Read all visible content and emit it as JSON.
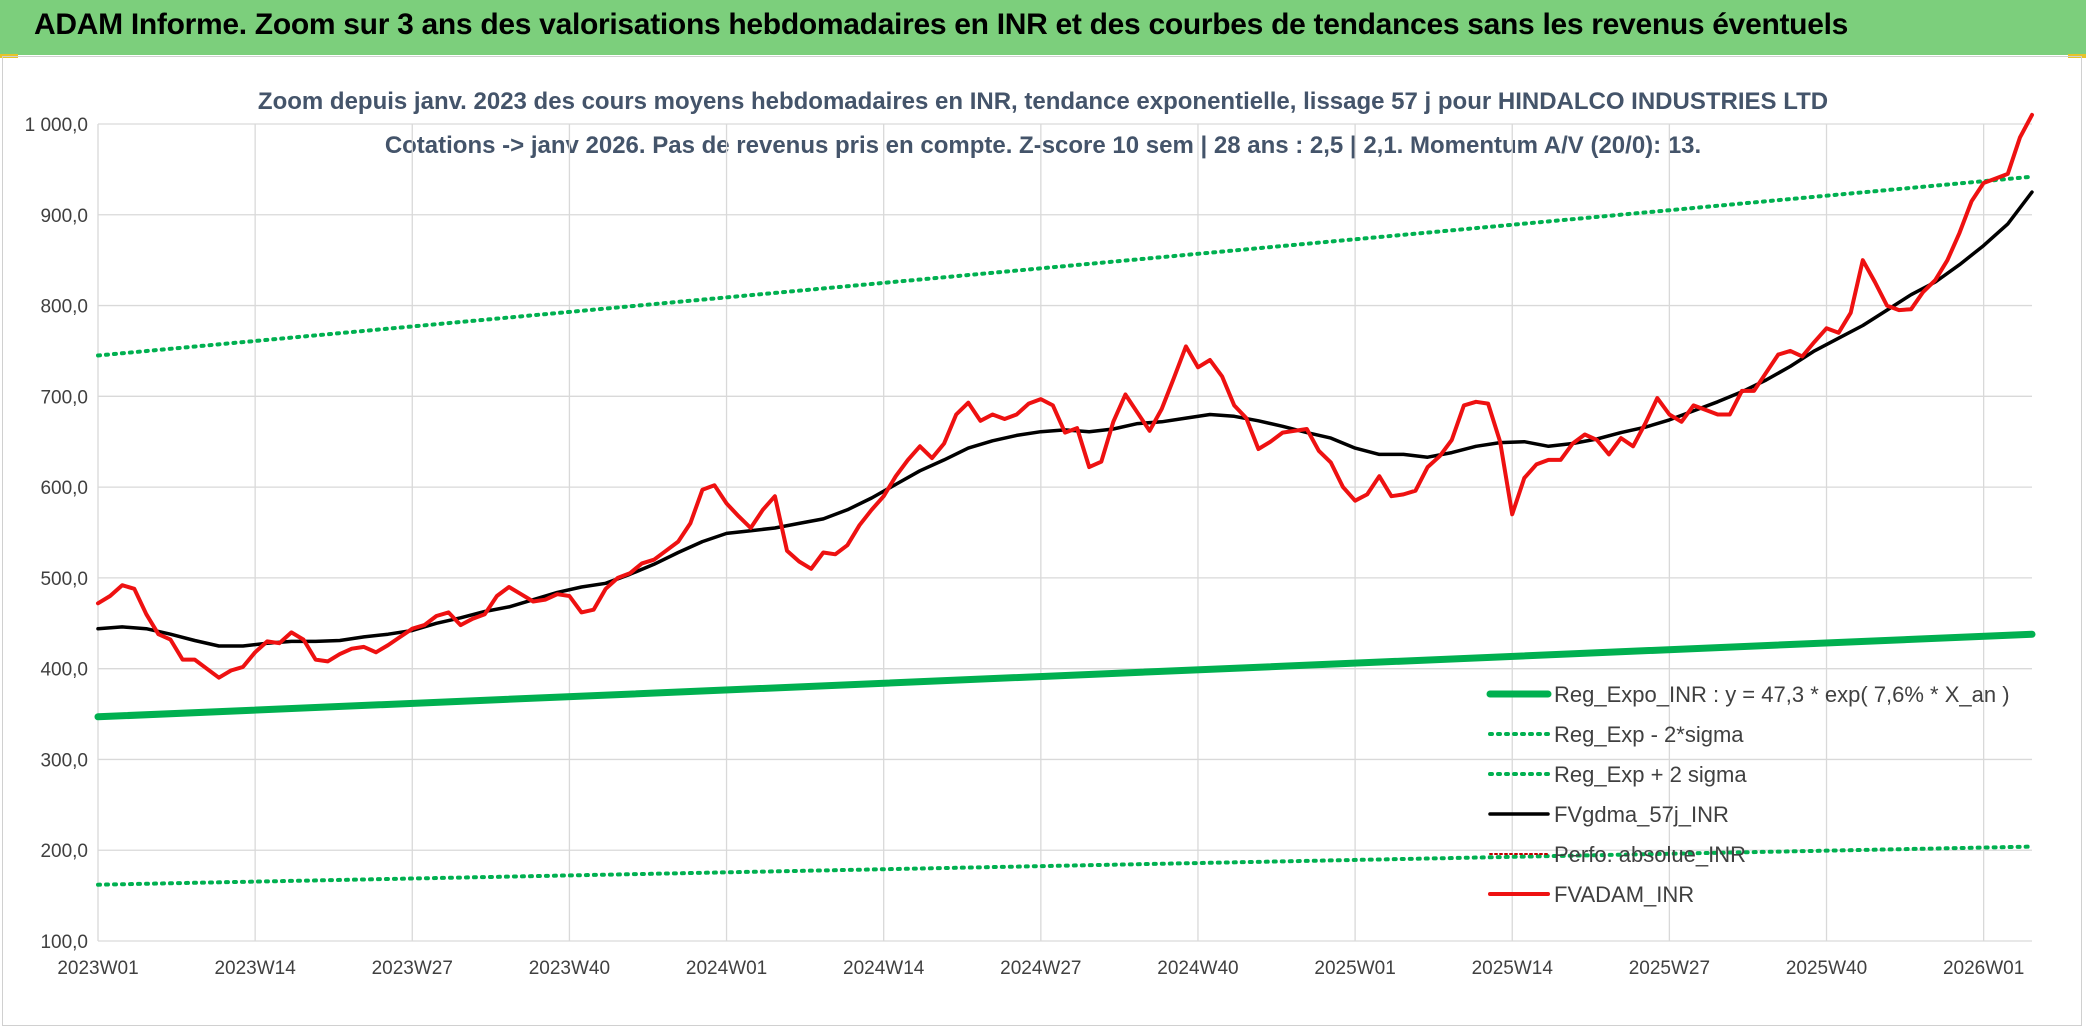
{
  "banner": {
    "title": "ADAM Informe. Zoom sur 3 ans des valorisations hebdomadaires en INR et des courbes de tendances sans les revenus éventuels"
  },
  "colors": {
    "banner_bg": "#7ccf7c",
    "reg_expo": "#00b050",
    "sigma_lines": "#00b050",
    "fvgdma": "#000000",
    "fvadam": "#ee1111",
    "perfo": "#c00000",
    "grid": "#d9d9d9"
  },
  "chart_data": {
    "type": "line",
    "title_lines": [
      "Zoom depuis janv. 2023 des cours moyens hebdomadaires en INR, tendance exponentielle, lissage 57 j pour HINDALCO INDUSTRIES LTD",
      "Cotations -> janv 2026. Pas de revenus pris en compte. Z-score 10 sem | 28 ans : 2,5 | 2,1. Momentum A/V (20/0): 13."
    ],
    "ylim": [
      100,
      1000
    ],
    "yticks": [
      "100,0",
      "200,0",
      "300,0",
      "400,0",
      "500,0",
      "600,0",
      "700,0",
      "800,0",
      "900,0",
      "1 000,0"
    ],
    "ytick_values": [
      100,
      200,
      300,
      400,
      500,
      600,
      700,
      800,
      900,
      1000
    ],
    "xticks": [
      "2023W01",
      "2023W14",
      "2023W27",
      "2023W40",
      "2024W01",
      "2024W14",
      "2024W27",
      "2024W40",
      "2025W01",
      "2025W14",
      "2025W27",
      "2025W40",
      "2026W01"
    ],
    "xtick_weeks": [
      0,
      13,
      26,
      39,
      52,
      65,
      78,
      91,
      104,
      117,
      130,
      143,
      156
    ],
    "xlim_weeks": [
      0,
      160
    ],
    "grid": true,
    "legend_position": "bottom-right",
    "series": [
      {
        "name": "Reg_Expo_INR : y = 47,3 * exp( 7,6% *  X_an )",
        "style": "thick",
        "x": [
          0,
          160
        ],
        "values": [
          347,
          438
        ]
      },
      {
        "name": "Reg_Exp - 2*sigma",
        "style": "dotted",
        "x": [
          0,
          160
        ],
        "values": [
          162,
          204
        ]
      },
      {
        "name": "Reg_Exp + 2 sigma",
        "style": "dotted",
        "x": [
          0,
          160
        ],
        "values": [
          745,
          942
        ]
      },
      {
        "name": "FVgdma_57j_INR",
        "style": "solid",
        "x": [
          0,
          2,
          4,
          6,
          8,
          10,
          12,
          14,
          16,
          18,
          20,
          22,
          24,
          26,
          28,
          30,
          32,
          34,
          36,
          38,
          40,
          42,
          44,
          46,
          48,
          50,
          52,
          54,
          56,
          58,
          60,
          62,
          64,
          66,
          68,
          70,
          72,
          74,
          76,
          78,
          80,
          82,
          84,
          86,
          88,
          90,
          92,
          94,
          96,
          98,
          100,
          102,
          104,
          106,
          108,
          110,
          112,
          114,
          116,
          118,
          120,
          122,
          124,
          126,
          128,
          130,
          132,
          134,
          136,
          138,
          140,
          142,
          144,
          146,
          148,
          150,
          152,
          154,
          156,
          158,
          160
        ],
        "values": [
          444,
          446,
          444,
          438,
          431,
          425,
          425,
          428,
          430,
          430,
          431,
          435,
          438,
          442,
          450,
          456,
          463,
          468,
          476,
          484,
          490,
          494,
          504,
          515,
          528,
          540,
          549,
          552,
          555,
          560,
          565,
          575,
          588,
          603,
          618,
          630,
          643,
          651,
          657,
          661,
          663,
          661,
          664,
          670,
          672,
          676,
          680,
          678,
          673,
          667,
          660,
          654,
          643,
          636,
          636,
          633,
          638,
          645,
          649,
          650,
          645,
          648,
          653,
          660,
          666,
          674,
          684,
          694,
          705,
          718,
          733,
          750,
          764,
          778,
          795,
          812,
          826,
          845,
          866,
          890,
          925
        ]
      },
      {
        "name": "Perfo. absolue_INR",
        "style": "solid-thin",
        "x": [],
        "values": []
      },
      {
        "name": "FVADAM_INR",
        "style": "solid",
        "x": [
          0,
          1,
          2,
          3,
          4,
          5,
          6,
          7,
          8,
          9,
          10,
          11,
          12,
          13,
          14,
          15,
          16,
          17,
          18,
          19,
          20,
          21,
          22,
          23,
          24,
          25,
          26,
          27,
          28,
          29,
          30,
          31,
          32,
          33,
          34,
          35,
          36,
          37,
          38,
          39,
          40,
          41,
          42,
          43,
          44,
          45,
          46,
          47,
          48,
          49,
          50,
          51,
          52,
          53,
          54,
          55,
          56,
          57,
          58,
          59,
          60,
          61,
          62,
          63,
          64,
          65,
          66,
          67,
          68,
          69,
          70,
          71,
          72,
          73,
          74,
          75,
          76,
          77,
          78,
          79,
          80,
          81,
          82,
          83,
          84,
          85,
          86,
          87,
          88,
          89,
          90,
          91,
          92,
          93,
          94,
          95,
          96,
          97,
          98,
          99,
          100,
          101,
          102,
          103,
          104,
          105,
          106,
          107,
          108,
          109,
          110,
          111,
          112,
          113,
          114,
          115,
          116,
          117,
          118,
          119,
          120,
          121,
          122,
          123,
          124,
          125,
          126,
          127,
          128,
          129,
          130,
          131,
          132,
          133,
          134,
          135,
          136,
          137,
          138,
          139,
          140,
          141,
          142,
          143,
          144,
          145,
          146,
          147,
          148,
          149,
          150,
          151,
          152,
          153,
          154,
          155,
          156,
          157,
          158,
          159,
          160
        ],
        "values": [
          472,
          480,
          492,
          488,
          460,
          438,
          432,
          410,
          410,
          400,
          390,
          398,
          402,
          418,
          430,
          428,
          440,
          432,
          410,
          408,
          416,
          422,
          424,
          418,
          426,
          435,
          444,
          448,
          458,
          462,
          448,
          455,
          460,
          480,
          490,
          482,
          474,
          476,
          482,
          480,
          462,
          465,
          488,
          500,
          505,
          516,
          520,
          530,
          540,
          560,
          597,
          602,
          582,
          568,
          555,
          575,
          590,
          530,
          518,
          510,
          528,
          526,
          536,
          558,
          575,
          590,
          612,
          630,
          645,
          632,
          648,
          680,
          693,
          673,
          680,
          675,
          680,
          692,
          697,
          690,
          660,
          665,
          622,
          628,
          672,
          702,
          682,
          662,
          686,
          720,
          755,
          732,
          740,
          722,
          690,
          676,
          642,
          650,
          660,
          662,
          664,
          640,
          627,
          600,
          585,
          592,
          612,
          590,
          592,
          596,
          622,
          634,
          652,
          690,
          694,
          692,
          650,
          570,
          610,
          625,
          630,
          630,
          648,
          658,
          652,
          636,
          654,
          645,
          670,
          698,
          680,
          672,
          690,
          685,
          680,
          680,
          706,
          706,
          726,
          746,
          750,
          744,
          760,
          775,
          770,
          792,
          850,
          826,
          800,
          795,
          796,
          815,
          828,
          850,
          880,
          915,
          935,
          940,
          945,
          985,
          1010
        ]
      }
    ],
    "legend_entries": [
      "Reg_Expo_INR : y = 47,3 * exp( 7,6% *  X_an )",
      "Reg_Exp - 2*sigma",
      "Reg_Exp + 2 sigma",
      "FVgdma_57j_INR",
      "Perfo. absolue_INR",
      "FVADAM_INR"
    ]
  }
}
